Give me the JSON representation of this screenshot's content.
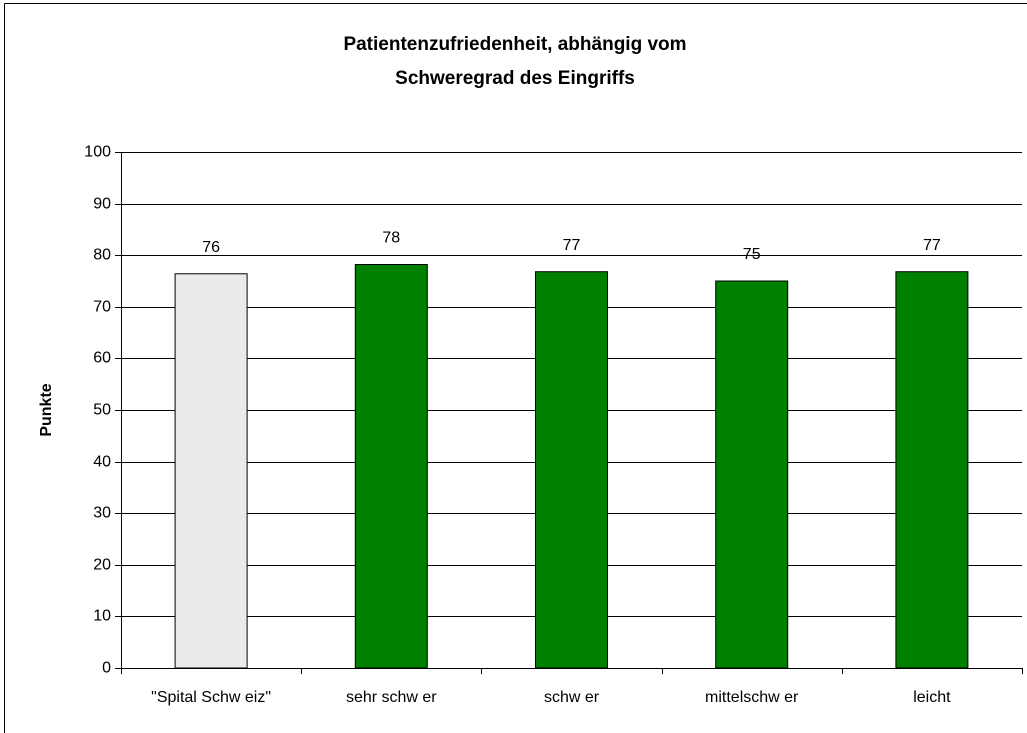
{
  "chart_data": {
    "type": "bar",
    "title": [
      "Patientenzufriedenheit, abhängig vom",
      "Schweregrad des Eingriffs"
    ],
    "ylabel": "Punkte",
    "categories": [
      "\"Spital Schw eiz\"",
      "sehr schw er",
      "schw er",
      "mittelschw er",
      "leicht"
    ],
    "values": [
      76.4,
      78.2,
      76.8,
      75.0,
      76.8
    ],
    "value_labels": [
      "76",
      "78",
      "77",
      "75",
      "77"
    ],
    "colors": [
      "#eaeaea",
      "#008000",
      "#008000",
      "#008000",
      "#008000"
    ],
    "ylim": [
      0,
      100
    ],
    "yticks": [
      0,
      10,
      20,
      30,
      40,
      50,
      60,
      70,
      80,
      90,
      100
    ],
    "grid": true
  }
}
